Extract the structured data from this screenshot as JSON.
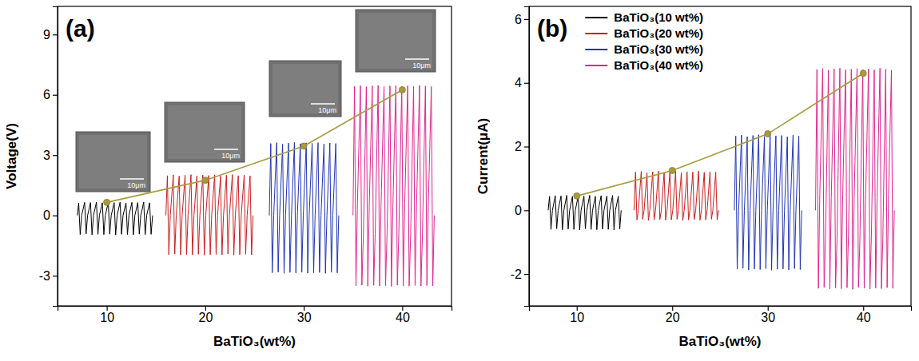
{
  "chart_data": [
    {
      "type": "line",
      "title": "(a)",
      "x_label": "BaTiO₃(wt%)",
      "y_label": "Voltage(V)",
      "xlim": [
        5,
        45
      ],
      "xticks": [
        10,
        20,
        30,
        40
      ],
      "ylim": [
        -4.5,
        10.4
      ],
      "yticks": [
        -3,
        0,
        3,
        6,
        9
      ],
      "annotations": [
        "10μm",
        "10μm",
        "10μm",
        "10μm"
      ],
      "series": [
        {
          "color": "#000000",
          "x": [
            7.0,
            7.15,
            7.3,
            7.45,
            7.75,
            7.9,
            8.05,
            8.35,
            8.5,
            8.65,
            8.95,
            9.1,
            9.25,
            9.55,
            9.7,
            9.85,
            10.15,
            10.3,
            10.45,
            10.75,
            10.9,
            11.05,
            11.35,
            11.5,
            11.65,
            11.95,
            12.1,
            12.25,
            12.55,
            12.7,
            12.85,
            13.15,
            13.3,
            13.45,
            13.75,
            13.9,
            14.05,
            14.35,
            14.5,
            14.65
          ],
          "values": [
            0,
            0.62,
            -0.95,
            0,
            0.65,
            -0.92,
            0,
            0.64,
            -0.96,
            0,
            0.66,
            -0.94,
            0,
            0.63,
            -0.95,
            0,
            0.65,
            -0.93,
            0,
            0.64,
            -0.97,
            0,
            0.66,
            -0.94,
            0,
            0.62,
            -0.95,
            0,
            0.65,
            -0.96,
            0,
            0.64,
            -0.93,
            0,
            0.66,
            -0.95,
            0,
            0.63,
            -0.94,
            0
          ]
        },
        {
          "color": "#cc1f1f",
          "x": [
            16.0,
            16.15,
            16.3,
            16.45,
            16.75,
            16.9,
            17.05,
            17.35,
            17.5,
            17.65,
            17.95,
            18.1,
            18.25,
            18.55,
            18.7,
            18.85,
            19.15,
            19.3,
            19.45,
            19.75,
            19.9,
            20.05,
            20.35,
            20.5,
            20.65,
            20.95,
            21.1,
            21.25,
            21.55,
            21.7,
            21.85,
            22.15,
            22.3,
            22.45,
            22.75,
            22.9,
            23.05,
            23.35,
            23.5,
            23.65,
            23.95,
            24.1,
            24.25,
            24.55,
            24.7,
            24.85
          ],
          "values": [
            0,
            1.98,
            -1.95,
            0,
            2.02,
            -1.92,
            0,
            1.96,
            -1.97,
            0,
            2.0,
            -1.94,
            0,
            2.03,
            -1.96,
            0,
            1.97,
            -1.93,
            0,
            2.01,
            -1.98,
            0,
            1.99,
            -1.95,
            0,
            2.02,
            -1.94,
            0,
            1.96,
            -1.96,
            0,
            2.0,
            -1.92,
            0,
            2.03,
            -1.97,
            0,
            1.98,
            -1.95,
            0,
            2.01,
            -1.93,
            0,
            1.97,
            -1.96,
            0
          ]
        },
        {
          "color": "#1f35b5",
          "x": [
            26.5,
            26.65,
            26.8,
            26.95,
            27.25,
            27.4,
            27.55,
            27.85,
            28.0,
            28.15,
            28.45,
            28.6,
            28.75,
            29.05,
            29.2,
            29.35,
            29.65,
            29.8,
            29.95,
            30.25,
            30.4,
            30.55,
            30.85,
            31.0,
            31.15,
            31.45,
            31.6,
            31.75,
            32.05,
            32.2,
            32.35,
            32.65,
            32.8,
            32.95,
            33.25,
            33.4,
            33.55
          ],
          "values": [
            0,
            3.58,
            -2.85,
            0,
            3.62,
            -2.82,
            0,
            3.55,
            -2.88,
            0,
            3.6,
            -2.84,
            0,
            3.63,
            -2.86,
            0,
            3.57,
            -2.83,
            0,
            3.61,
            -2.87,
            0,
            3.59,
            -2.85,
            0,
            3.62,
            -2.84,
            0,
            3.56,
            -2.88,
            0,
            3.6,
            -2.83,
            0,
            3.58,
            -2.86,
            0
          ]
        },
        {
          "color": "#e0258c",
          "x": [
            35.0,
            35.15,
            35.3,
            35.45,
            35.75,
            35.9,
            36.05,
            36.35,
            36.5,
            36.65,
            36.95,
            37.1,
            37.25,
            37.55,
            37.7,
            37.85,
            38.15,
            38.3,
            38.45,
            38.75,
            38.9,
            39.05,
            39.35,
            39.5,
            39.65,
            39.95,
            40.1,
            40.25,
            40.55,
            40.7,
            40.85,
            41.15,
            41.3,
            41.45,
            41.75,
            41.9,
            42.05,
            42.35,
            42.5,
            42.65,
            42.95,
            43.1,
            43.25
          ],
          "values": [
            0,
            6.42,
            -3.5,
            0.6,
            6.46,
            -3.47,
            -1.0,
            6.4,
            -3.52,
            0.5,
            6.45,
            -3.48,
            -0.9,
            6.47,
            -3.51,
            0.6,
            6.41,
            -3.49,
            -1.0,
            6.44,
            -3.53,
            0.5,
            6.46,
            -3.47,
            -0.9,
            6.43,
            -3.5,
            0.6,
            6.45,
            -3.52,
            -1.0,
            6.42,
            -3.48,
            0.5,
            6.47,
            -3.51,
            -0.9,
            6.44,
            -3.49,
            0.6,
            6.41,
            -3.5,
            0
          ]
        },
        {
          "color": "#a89a3f",
          "marker": "circle",
          "x": [
            10,
            20,
            30,
            40
          ],
          "values": [
            0.65,
            1.75,
            3.45,
            6.25
          ]
        }
      ]
    },
    {
      "type": "line",
      "title": "(b)",
      "x_label": "BaTiO₃(wt%)",
      "y_label": "Current(μA)",
      "xlim": [
        5,
        45
      ],
      "xticks": [
        10,
        20,
        30,
        40
      ],
      "ylim": [
        -3,
        6.4
      ],
      "yticks": [
        -2,
        0,
        2,
        4,
        6
      ],
      "legend": "upper left",
      "series": [
        {
          "name": "BaTiO₃(10 wt%)",
          "color": "#000000",
          "x": [
            7.0,
            7.15,
            7.3,
            7.45,
            7.75,
            7.9,
            8.05,
            8.35,
            8.5,
            8.65,
            8.95,
            9.1,
            9.25,
            9.55,
            9.7,
            9.85,
            10.15,
            10.3,
            10.45,
            10.75,
            10.9,
            11.05,
            11.35,
            11.5,
            11.65,
            11.95,
            12.1,
            12.25,
            12.55,
            12.7,
            12.85,
            13.15,
            13.3,
            13.45,
            13.75,
            13.9,
            14.05,
            14.35,
            14.5,
            14.65
          ],
          "values": [
            0,
            0.44,
            -0.6,
            0,
            0.46,
            -0.58,
            0,
            0.45,
            -0.61,
            0,
            0.47,
            -0.59,
            0,
            0.44,
            -0.6,
            0,
            0.46,
            -0.62,
            0,
            0.45,
            -0.58,
            0,
            0.47,
            -0.6,
            0,
            0.44,
            -0.61,
            0,
            0.46,
            -0.59,
            0,
            0.45,
            -0.6,
            0,
            0.47,
            -0.62,
            0,
            0.44,
            -0.59,
            0
          ]
        },
        {
          "name": "BaTiO₃(20 wt%)",
          "color": "#cc1f1f",
          "x": [
            16.0,
            16.15,
            16.3,
            16.45,
            16.75,
            16.9,
            17.05,
            17.35,
            17.5,
            17.65,
            17.95,
            18.1,
            18.25,
            18.55,
            18.7,
            18.85,
            19.15,
            19.3,
            19.45,
            19.75,
            19.9,
            20.05,
            20.35,
            20.5,
            20.65,
            20.95,
            21.1,
            21.25,
            21.55,
            21.7,
            21.85,
            22.15,
            22.3,
            22.45,
            22.75,
            22.9,
            23.05,
            23.35,
            23.5,
            23.65,
            23.95,
            24.1,
            24.25,
            24.55,
            24.7,
            24.85
          ],
          "values": [
            0,
            1.2,
            -0.3,
            0,
            1.22,
            -0.28,
            0,
            1.18,
            -0.32,
            0,
            1.21,
            -0.3,
            0,
            1.23,
            -0.29,
            0,
            1.19,
            -0.31,
            0,
            1.2,
            -0.3,
            0,
            1.22,
            -0.28,
            0,
            1.18,
            -0.32,
            0,
            1.21,
            -0.3,
            0,
            1.2,
            -0.29,
            0,
            1.23,
            -0.31,
            0,
            1.19,
            -0.3,
            0,
            1.21,
            -0.28,
            0,
            1.2,
            -0.3,
            0
          ]
        },
        {
          "name": "BaTiO₃(30 wt%)",
          "color": "#1f35b5",
          "x": [
            26.5,
            26.65,
            26.8,
            26.95,
            27.25,
            27.4,
            27.55,
            27.85,
            28.0,
            28.15,
            28.45,
            28.6,
            28.75,
            29.05,
            29.2,
            29.35,
            29.65,
            29.8,
            29.95,
            30.25,
            30.4,
            30.55,
            30.85,
            31.0,
            31.15,
            31.45,
            31.6,
            31.75,
            32.05,
            32.2,
            32.35,
            32.65,
            32.8,
            32.95,
            33.25,
            33.4,
            33.55
          ],
          "values": [
            0,
            2.33,
            -1.85,
            0,
            2.36,
            -1.82,
            0,
            2.31,
            -1.87,
            0,
            2.35,
            -1.84,
            0,
            2.37,
            -1.86,
            0,
            2.32,
            -1.83,
            0,
            2.36,
            -1.88,
            0,
            2.34,
            -1.85,
            0,
            2.35,
            -1.84,
            0,
            2.31,
            -1.87,
            0,
            2.36,
            -1.83,
            0,
            2.33,
            -1.86,
            0
          ]
        },
        {
          "name": "BaTiO₃(40 wt%)",
          "color": "#e0258c",
          "x": [
            35.0,
            35.15,
            35.3,
            35.45,
            35.75,
            35.9,
            36.05,
            36.35,
            36.5,
            36.65,
            36.95,
            37.1,
            37.25,
            37.55,
            37.7,
            37.85,
            38.15,
            38.3,
            38.45,
            38.75,
            38.9,
            39.05,
            39.35,
            39.5,
            39.65,
            39.95,
            40.1,
            40.25,
            40.55,
            40.7,
            40.85,
            41.15,
            41.3,
            41.45,
            41.75,
            41.9,
            42.05,
            42.35,
            42.5,
            42.65,
            42.95,
            43.1,
            43.25
          ],
          "values": [
            0,
            4.42,
            -2.45,
            0.5,
            4.45,
            -2.42,
            -0.8,
            4.4,
            -2.47,
            0.4,
            4.44,
            -2.44,
            -0.9,
            4.46,
            -2.46,
            0.5,
            4.41,
            -2.43,
            -0.8,
            4.43,
            -2.48,
            0.4,
            4.45,
            -2.42,
            -0.9,
            4.42,
            -2.45,
            0.5,
            4.44,
            -2.47,
            -0.8,
            4.41,
            -2.44,
            0.4,
            4.46,
            -2.46,
            -0.9,
            4.43,
            -2.43,
            0.5,
            4.4,
            -2.45,
            0
          ]
        },
        {
          "color": "#a89a3f",
          "marker": "circle",
          "x": [
            10,
            20,
            30,
            40
          ],
          "values": [
            0.45,
            1.25,
            2.4,
            4.3
          ]
        }
      ]
    }
  ]
}
